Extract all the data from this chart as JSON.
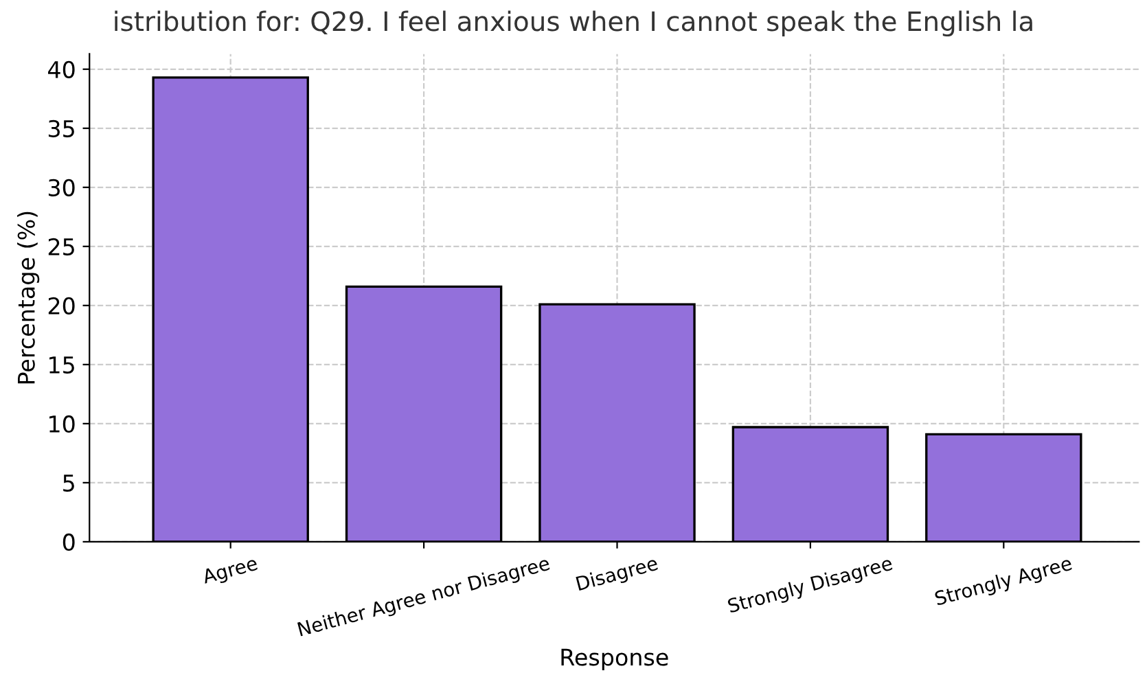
{
  "chart_data": {
    "type": "bar",
    "title": "istribution for: Q29. I feel anxious when I cannot speak the English la",
    "xlabel": "Response",
    "ylabel": "Percentage (%)",
    "categories": [
      "Agree",
      "Neither Agree nor Disagree",
      "Disagree",
      "Strongly Disagree",
      "Strongly Agree"
    ],
    "values": [
      39.3,
      21.6,
      20.1,
      9.7,
      9.1
    ],
    "color": "#9370db",
    "ylim": [
      0,
      41.3
    ],
    "yticks": [
      0,
      5,
      10,
      15,
      20,
      25,
      30,
      35,
      40
    ],
    "grid": true
  }
}
